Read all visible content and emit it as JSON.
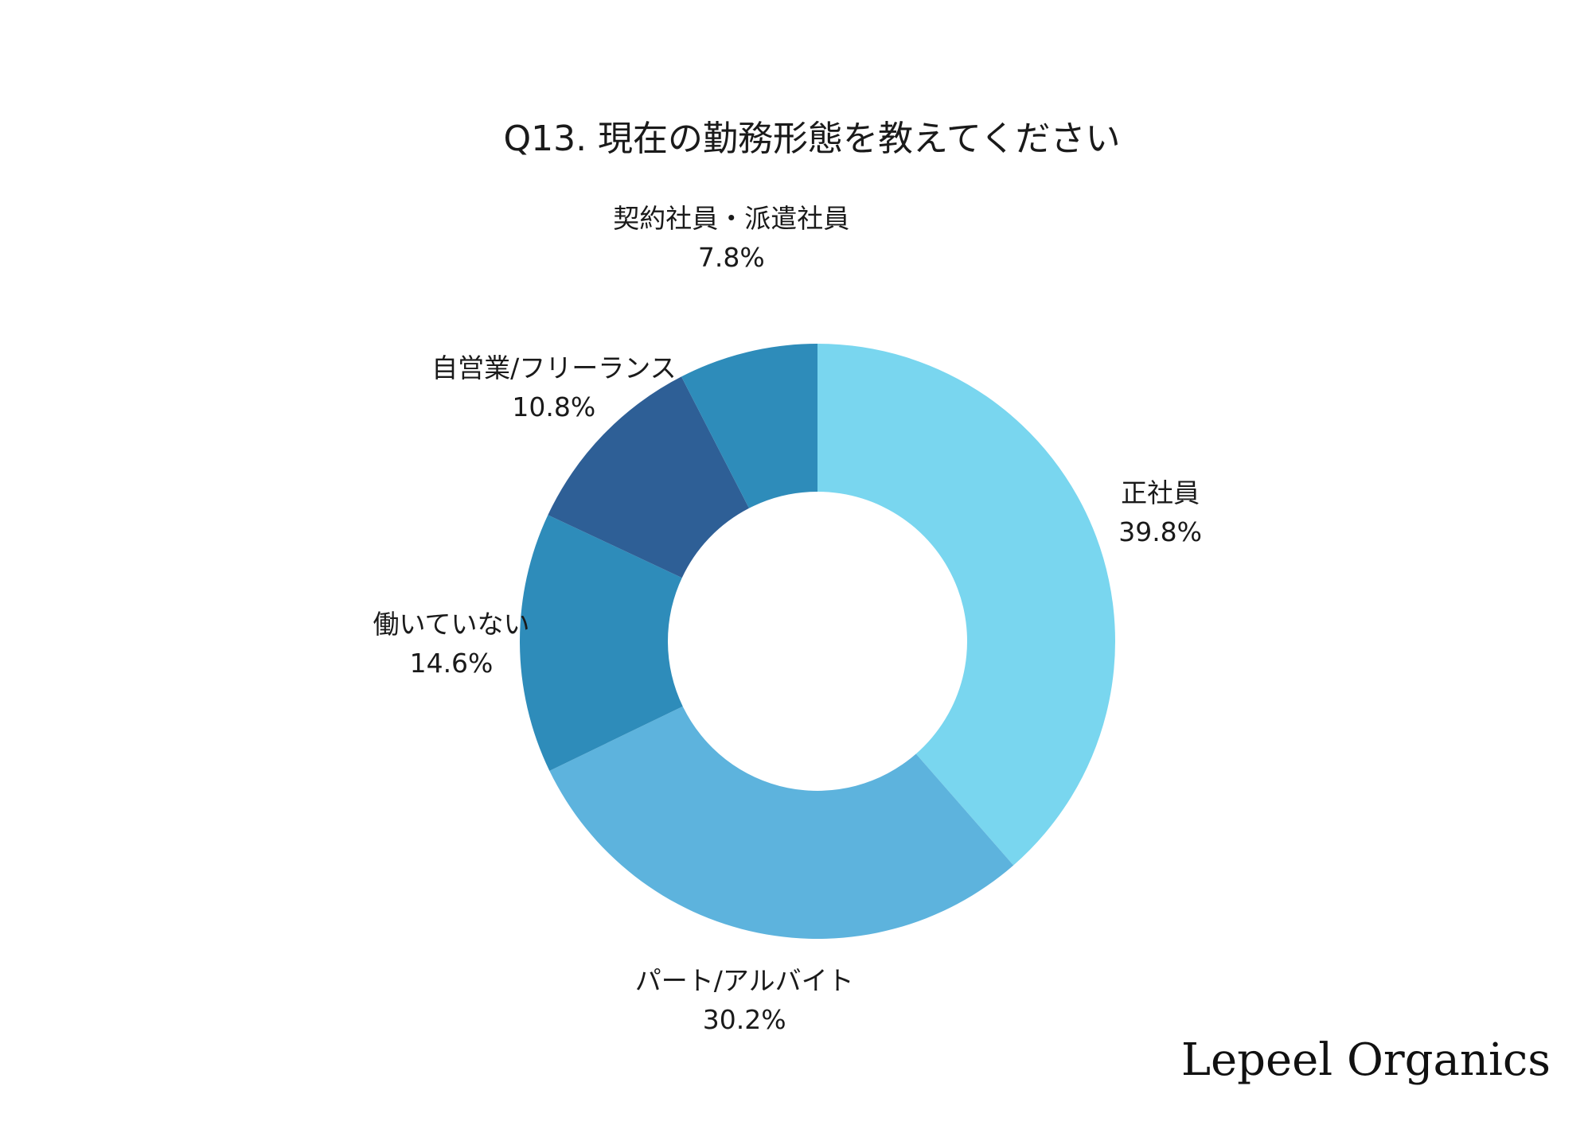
{
  "chart_data": {
    "type": "pie",
    "title": "Q13. 現在の勤務形態を教えてください",
    "series": [
      {
        "label": "正社員",
        "value": 39.8,
        "value_text": "39.8%",
        "color": "#79d6ef"
      },
      {
        "label": "パート/アルバイト",
        "value": 30.2,
        "value_text": "30.2%",
        "color": "#5db3dd"
      },
      {
        "label": "働いていない",
        "value": 14.6,
        "value_text": "14.6%",
        "color": "#2e8cba"
      },
      {
        "label": "自営業/フリーランス",
        "value": 10.8,
        "value_text": "10.8%",
        "color": "#2e5f96"
      },
      {
        "label": "契約社員・派遣社員",
        "value": 7.8,
        "value_text": "7.8%",
        "color": "#2e8cba"
      }
    ],
    "start_angle": "12 o'clock",
    "direction": "clockwise",
    "donut": true,
    "legend": "none"
  },
  "brand": "Lepeel Organics"
}
